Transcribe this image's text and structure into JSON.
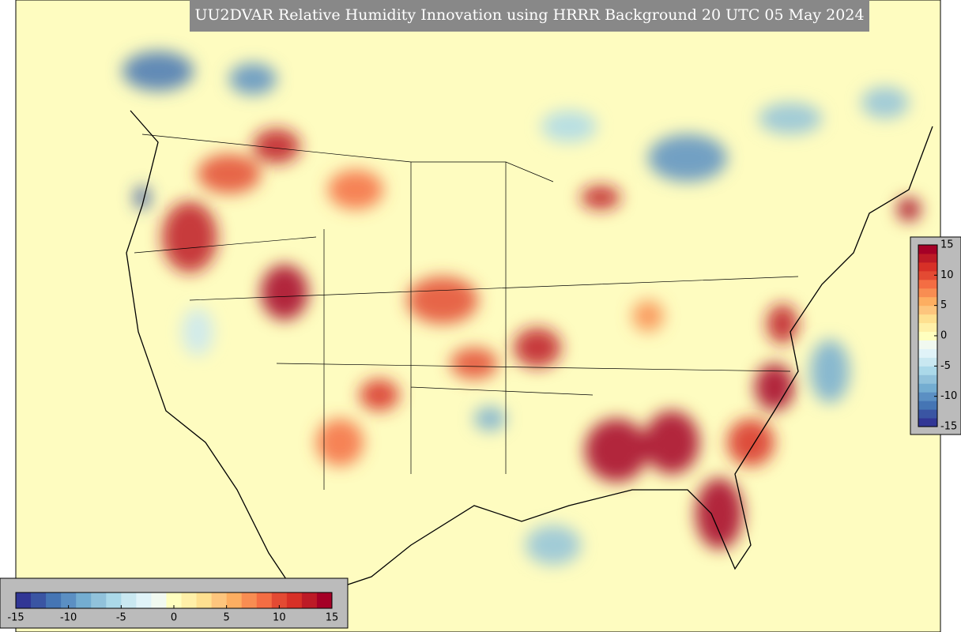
{
  "title": "UU2DVAR Relative Humidity Innovation using HRRR Background 20 UTC 05 May 2024",
  "colorbar": {
    "lim": [
      -15,
      15
    ],
    "ticks": [
      -15,
      -10,
      -5,
      0,
      5,
      10,
      15
    ],
    "colors": [
      "#313695",
      "#3a55a3",
      "#4575b4",
      "#5b8fc3",
      "#74add1",
      "#91c2db",
      "#abd9e9",
      "#c9e8f1",
      "#e0f3f8",
      "#f1f9f0",
      "#ffffbf",
      "#fff0a8",
      "#fee090",
      "#fdc57d",
      "#fdae61",
      "#f88d52",
      "#f46d43",
      "#e34a33",
      "#d73027",
      "#bd1a26",
      "#a50026"
    ]
  }
}
